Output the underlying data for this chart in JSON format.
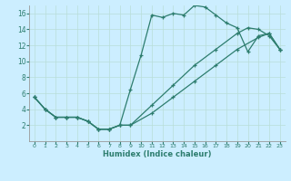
{
  "xlabel": "Humidex (Indice chaleur)",
  "bg_color": "#cceeff",
  "line_color": "#2d7d6e",
  "grid_color": "#b8ddd8",
  "xlim": [
    -0.5,
    23.5
  ],
  "ylim": [
    0,
    17
  ],
  "xticks": [
    0,
    1,
    2,
    3,
    4,
    5,
    6,
    7,
    8,
    9,
    10,
    11,
    12,
    13,
    14,
    15,
    16,
    17,
    18,
    19,
    20,
    21,
    22,
    23
  ],
  "yticks": [
    2,
    4,
    6,
    8,
    10,
    12,
    14,
    16
  ],
  "line1_x": [
    0,
    1,
    2,
    3,
    4,
    5,
    6,
    7,
    8,
    9,
    10,
    11,
    12,
    13,
    14,
    15,
    16,
    17,
    18,
    19,
    20,
    21,
    22,
    23
  ],
  "line1_y": [
    5.5,
    4.0,
    3.0,
    3.0,
    3.0,
    2.5,
    1.5,
    1.5,
    2.0,
    6.5,
    10.8,
    15.8,
    15.5,
    16.0,
    15.8,
    17.0,
    16.8,
    15.8,
    14.8,
    14.2,
    11.2,
    13.2,
    13.5,
    11.5
  ],
  "line2_x": [
    0,
    1,
    2,
    3,
    4,
    5,
    6,
    7,
    8,
    9,
    11,
    13,
    15,
    17,
    19,
    20,
    21,
    22,
    23
  ],
  "line2_y": [
    5.5,
    4.0,
    3.0,
    3.0,
    3.0,
    2.5,
    1.5,
    1.5,
    2.0,
    2.0,
    4.5,
    7.0,
    9.5,
    11.5,
    13.5,
    14.2,
    14.0,
    13.2,
    11.5
  ],
  "line3_x": [
    0,
    1,
    2,
    3,
    4,
    5,
    6,
    7,
    8,
    9,
    11,
    13,
    15,
    17,
    19,
    21,
    22,
    23
  ],
  "line3_y": [
    5.5,
    4.0,
    3.0,
    3.0,
    3.0,
    2.5,
    1.5,
    1.5,
    2.0,
    2.0,
    3.5,
    5.5,
    7.5,
    9.5,
    11.5,
    13.0,
    13.5,
    11.5
  ]
}
